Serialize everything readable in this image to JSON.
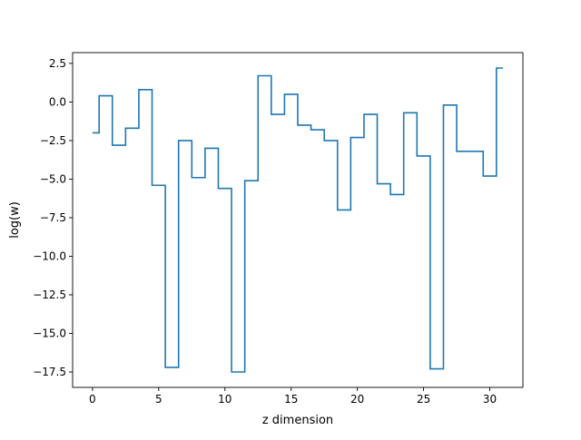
{
  "chart_data": {
    "type": "line",
    "drawstyle": "steps-mid",
    "title": "",
    "xlabel": "z dimension",
    "ylabel": "log(w)",
    "xlim": [
      -1.5,
      32.5
    ],
    "ylim": [
      -18.5,
      3.2
    ],
    "xticks": [
      0,
      5,
      10,
      15,
      20,
      25,
      30
    ],
    "xtick_labels": [
      "0",
      "5",
      "10",
      "15",
      "20",
      "25",
      "30"
    ],
    "yticks": [
      2.5,
      0.0,
      -2.5,
      -5.0,
      -7.5,
      -10.0,
      -12.5,
      -15.0,
      -17.5
    ],
    "ytick_labels": [
      "2.5",
      "0.0",
      "−2.5",
      "−5.0",
      "−7.5",
      "−10.0",
      "−12.5",
      "−15.0",
      "−17.5"
    ],
    "grid": false,
    "legend": false,
    "series": [
      {
        "color": "#1f77b4",
        "x": [
          0,
          1,
          2,
          3,
          4,
          5,
          6,
          7,
          8,
          9,
          10,
          11,
          12,
          13,
          14,
          15,
          16,
          17,
          18,
          19,
          20,
          21,
          22,
          23,
          24,
          25,
          26,
          27,
          28,
          29,
          30,
          31
        ],
        "values": [
          -2.0,
          0.4,
          -2.8,
          -1.7,
          0.8,
          -5.4,
          -17.2,
          -2.5,
          -4.9,
          -3.0,
          -5.6,
          -17.5,
          -5.1,
          1.7,
          -0.8,
          0.5,
          -1.5,
          -1.8,
          -2.5,
          -7.0,
          -2.3,
          -0.8,
          -5.3,
          -6.0,
          -0.7,
          -3.5,
          -17.3,
          -0.2,
          -3.2,
          -3.2,
          -4.8,
          2.2
        ]
      }
    ]
  }
}
